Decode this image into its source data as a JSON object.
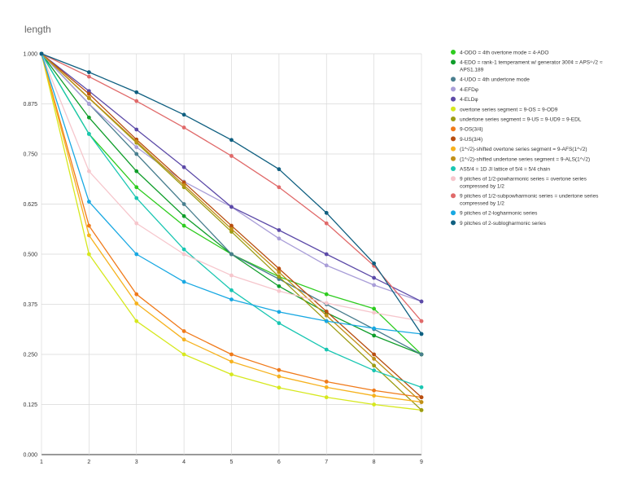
{
  "chart_data": {
    "type": "line",
    "title": "length",
    "xlabel": "",
    "ylabel": "",
    "x": [
      1,
      2,
      3,
      4,
      5,
      6,
      7,
      8,
      9
    ],
    "xlim": [
      1,
      9
    ],
    "ylim": [
      0,
      1
    ],
    "y_ticks": [
      "0.000",
      "0.125",
      "0.250",
      "0.375",
      "0.500",
      "0.625",
      "0.750",
      "0.875",
      "1.000"
    ],
    "x_ticks": [
      "1",
      "2",
      "3",
      "4",
      "5",
      "6",
      "7",
      "8",
      "9"
    ],
    "grid": true,
    "legend_position": "right",
    "series": [
      {
        "name": "4-ODO = 4th overtone mode = 4-ADO",
        "color": "#2ecc1f",
        "values": [
          1,
          0.8,
          0.667,
          0.571,
          0.5,
          0.444,
          0.4,
          0.364,
          0.25
        ],
        "legend_lines": [
          "4-ODO = 4th overtone mode = 4-ADO"
        ]
      },
      {
        "name": "4-EDO = rank-1 temperament w/ generator 300¢ = APS⁴√2 ≈ APS1.189",
        "color": "#0f9d2a",
        "values": [
          1,
          0.841,
          0.707,
          0.595,
          0.5,
          0.42,
          0.354,
          0.297,
          0.25
        ],
        "legend_lines": [
          "4-EDO = rank-1 temperament w/ generator 300¢ = APS⁴√2 ≈",
          "APS1.189"
        ]
      },
      {
        "name": "4-UDO = 4th undertone mode",
        "color": "#4a7f8f",
        "values": [
          1,
          0.875,
          0.75,
          0.625,
          0.5,
          0.438,
          0.375,
          0.313,
          0.25
        ],
        "legend_lines": [
          "4-UDO = 4th undertone mode"
        ]
      },
      {
        "name": "4-EFDφ",
        "color": "#a99ed8",
        "values": [
          1,
          0.875,
          0.767,
          0.681,
          0.618,
          0.539,
          0.472,
          0.423,
          0.382
        ],
        "legend_lines": [
          "4-EFDφ"
        ]
      },
      {
        "name": "4-ELDφ",
        "color": "#5c4aa8",
        "values": [
          1,
          0.907,
          0.811,
          0.717,
          0.618,
          0.56,
          0.5,
          0.441,
          0.382
        ],
        "legend_lines": [
          "4-ELDφ"
        ]
      },
      {
        "name": "overtone series segment = 9-OS = 9-OD9",
        "color": "#d6e81e",
        "values": [
          1,
          0.5,
          0.333,
          0.25,
          0.2,
          0.167,
          0.143,
          0.125,
          0.111
        ],
        "legend_lines": [
          "overtone series segment = 9-OS = 9-OD9"
        ]
      },
      {
        "name": "undertone series segment = 9-US = 9-UD9 = 9-EDL",
        "color": "#9c9c12",
        "values": [
          1,
          0.889,
          0.778,
          0.667,
          0.556,
          0.444,
          0.333,
          0.222,
          0.111
        ],
        "legend_lines": [
          "undertone series segment = 9-US = 9-UD9 = 9-EDL"
        ]
      },
      {
        "name": "9-OS(3/4)",
        "color": "#f07a1a",
        "values": [
          1,
          0.571,
          0.4,
          0.308,
          0.25,
          0.211,
          0.182,
          0.16,
          0.143
        ],
        "legend_lines": [
          "9-OS(3/4)"
        ]
      },
      {
        "name": "9-US(3/4)",
        "color": "#b84d10",
        "values": [
          1,
          0.9,
          0.786,
          0.679,
          0.571,
          0.464,
          0.357,
          0.25,
          0.143
        ],
        "legend_lines": [
          "9-US(3/4)"
        ]
      },
      {
        "name": "(1^√2)-shifted overtone series segment = 9-AFS(1^√2)",
        "color": "#f6b21e",
        "values": [
          1,
          0.547,
          0.377,
          0.287,
          0.232,
          0.195,
          0.168,
          0.147,
          0.131
        ],
        "legend_lines": [
          "(1^√2)-shifted overtone series segment = 9-AFS(1^√2)"
        ]
      },
      {
        "name": "(1^√2)-shifted undertone series segment = 9-ALS(1^√2)",
        "color": "#c09018",
        "values": [
          1,
          0.89,
          0.781,
          0.672,
          0.563,
          0.455,
          0.347,
          0.239,
          0.131
        ],
        "legend_lines": [
          "(1^√2)-shifted undertone series segment = 9-ALS(1^√2)"
        ]
      },
      {
        "name": "AS5/4 = 1D JI lattice of 5/4 = 5/4 chain",
        "color": "#19c6b2",
        "values": [
          1,
          0.8,
          0.64,
          0.512,
          0.41,
          0.328,
          0.262,
          0.21,
          0.168
        ],
        "legend_lines": [
          "AS5/4 = 1D JI lattice of 5/4 = 5/4 chain"
        ]
      },
      {
        "name": "9 pitches of 1/2-powharmonic series = overtone series compressed by 1/2",
        "color": "#f6c6cc",
        "values": [
          1,
          0.707,
          0.577,
          0.5,
          0.447,
          0.408,
          0.378,
          0.354,
          0.333
        ],
        "legend_lines": [
          "9 pitches of 1/2-powharmonic series = overtone series",
          "compressed by 1/2"
        ]
      },
      {
        "name": "9 pitches of 1/2-subpowharmonic series = undertone series compressed by 1/2",
        "color": "#e06a6a",
        "values": [
          1,
          0.943,
          0.882,
          0.816,
          0.745,
          0.667,
          0.577,
          0.471,
          0.333
        ],
        "legend_lines": [
          "9 pitches of 1/2-subpowharmonic series = undertone series",
          "compressed by 1/2"
        ]
      },
      {
        "name": "9 pitches of 2-logharmonic series",
        "color": "#18a8e2",
        "values": [
          1,
          0.631,
          0.5,
          0.431,
          0.387,
          0.356,
          0.333,
          0.315,
          0.301
        ],
        "legend_lines": [
          "9 pitches of 2-logharmonic series"
        ]
      },
      {
        "name": "9 pitches of 2-sublogharmonic series",
        "color": "#0f5f80",
        "values": [
          1,
          0.954,
          0.904,
          0.848,
          0.785,
          0.712,
          0.603,
          0.477,
          0.301
        ],
        "legend_lines": [
          "9 pitches of 2-sublogharmonic series"
        ]
      }
    ]
  }
}
